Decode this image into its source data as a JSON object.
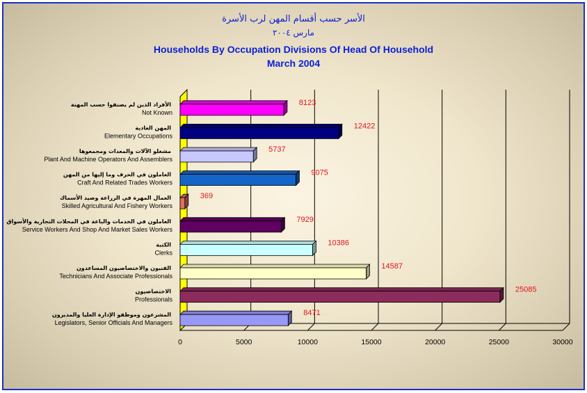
{
  "chart_data": {
    "type": "bar",
    "orientation": "horizontal",
    "title_ar": "الأسر حسب أقسام المهن لرب الأسرة",
    "subtitle_ar": "مارس ٢٠٠٤",
    "title": "Households By Occupation Divisions Of Head Of Household",
    "subtitle": "March 2004",
    "categories": [
      {
        "ar": "الأفراد الذين لم يصنفوا حسب المهنة",
        "en": "Not Known"
      },
      {
        "ar": "المهن العادية",
        "en": "Elementary Occupations"
      },
      {
        "ar": "مشغلو الآلات والمعدات ومجمعوها",
        "en": "Plant And Machine Operators And Assemblers"
      },
      {
        "ar": "العاملون في الحرف وما إليها من المهن",
        "en": "Craft And Related Trades Workers"
      },
      {
        "ar": "العمال المهرة في الزراعة وصيد الأسماك",
        "en": "Skilled Agricultural And Fishery Workers"
      },
      {
        "ar": "العاملون في الخدمات والباعة في المحلات التجارية والأسواق",
        "en": "Service Workers And Shop And Market Sales Workers"
      },
      {
        "ar": "الكتبة",
        "en": "Clerks"
      },
      {
        "ar": "الفنيون والاختصاصيون المساعدون",
        "en": "Technicians And Associate Professionals"
      },
      {
        "ar": "الاختصاصيون",
        "en": "Professionals"
      },
      {
        "ar": "المشرعون وموظفو الإدارة العليا والمديرون",
        "en": "Legislators, Senior Officials And Managers"
      }
    ],
    "values": [
      8123,
      12422,
      5737,
      9075,
      369,
      7929,
      10386,
      14587,
      25085,
      8471
    ],
    "colors": [
      "#ff00ff",
      "#000080",
      "#c8c8ff",
      "#1565c8",
      "#e07060",
      "#600060",
      "#c8ffff",
      "#ffffc8",
      "#8c2c5c",
      "#9898f8"
    ],
    "xlim": [
      0,
      30000
    ],
    "xticks": [
      "0",
      "5000",
      "10000",
      "15000",
      "20000",
      "25000",
      "30000"
    ],
    "grid": true,
    "legend": "none",
    "value_label_color": "#e0141e",
    "title_color": "#0a1fd6",
    "frame_color": "#1a2ec4"
  }
}
